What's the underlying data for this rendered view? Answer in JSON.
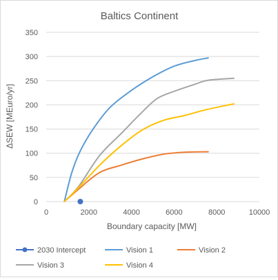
{
  "chart_data": {
    "type": "line",
    "title": "Baltics Continent",
    "xlabel": "Boundary capacity [MW]",
    "ylabel": "ΔSEW [MEuro/yr]",
    "xlim": [
      0,
      10000
    ],
    "ylim": [
      0,
      350
    ],
    "x_ticks": [
      0,
      2000,
      4000,
      6000,
      8000,
      10000
    ],
    "y_ticks": [
      0,
      50,
      100,
      150,
      200,
      250,
      300,
      350
    ],
    "x_tick_labels": [
      "0",
      "2000",
      "4000",
      "6000",
      "8000",
      "10000"
    ],
    "y_tick_labels": [
      "0",
      "50",
      "100",
      "150",
      "200",
      "250",
      "300",
      "350"
    ],
    "grid": "horizontal",
    "legend_position": "bottom",
    "series": [
      {
        "name": "2030 Intercept",
        "kind": "marker",
        "color": "#4472c4",
        "points": [
          [
            1600,
            0
          ]
        ]
      },
      {
        "name": "Vision 1",
        "kind": "line",
        "color": "#5b9bd5",
        "points": [
          [
            850,
            0
          ],
          [
            1200,
            60
          ],
          [
            1600,
            105
          ],
          [
            2200,
            150
          ],
          [
            3000,
            195
          ],
          [
            4000,
            230
          ],
          [
            5000,
            258
          ],
          [
            6000,
            280
          ],
          [
            7000,
            292
          ],
          [
            7600,
            297
          ]
        ]
      },
      {
        "name": "Vision 2",
        "kind": "line",
        "color": "#ed7d31",
        "points": [
          [
            850,
            0
          ],
          [
            1500,
            25
          ],
          [
            2500,
            60
          ],
          [
            3500,
            75
          ],
          [
            4500,
            88
          ],
          [
            5500,
            98
          ],
          [
            6500,
            102
          ],
          [
            7600,
            103
          ]
        ]
      },
      {
        "name": "Vision 3",
        "kind": "line",
        "color": "#a5a5a5",
        "points": [
          [
            850,
            0
          ],
          [
            1500,
            30
          ],
          [
            2500,
            95
          ],
          [
            3500,
            140
          ],
          [
            4500,
            185
          ],
          [
            5200,
            213
          ],
          [
            6000,
            228
          ],
          [
            7000,
            243
          ],
          [
            7600,
            251
          ],
          [
            8800,
            255
          ]
        ]
      },
      {
        "name": "Vision 4",
        "kind": "line",
        "color": "#ffc000",
        "points": [
          [
            850,
            0
          ],
          [
            1500,
            28
          ],
          [
            2500,
            75
          ],
          [
            3500,
            115
          ],
          [
            4500,
            148
          ],
          [
            5500,
            168
          ],
          [
            6500,
            178
          ],
          [
            7500,
            190
          ],
          [
            8800,
            202
          ]
        ]
      }
    ]
  }
}
